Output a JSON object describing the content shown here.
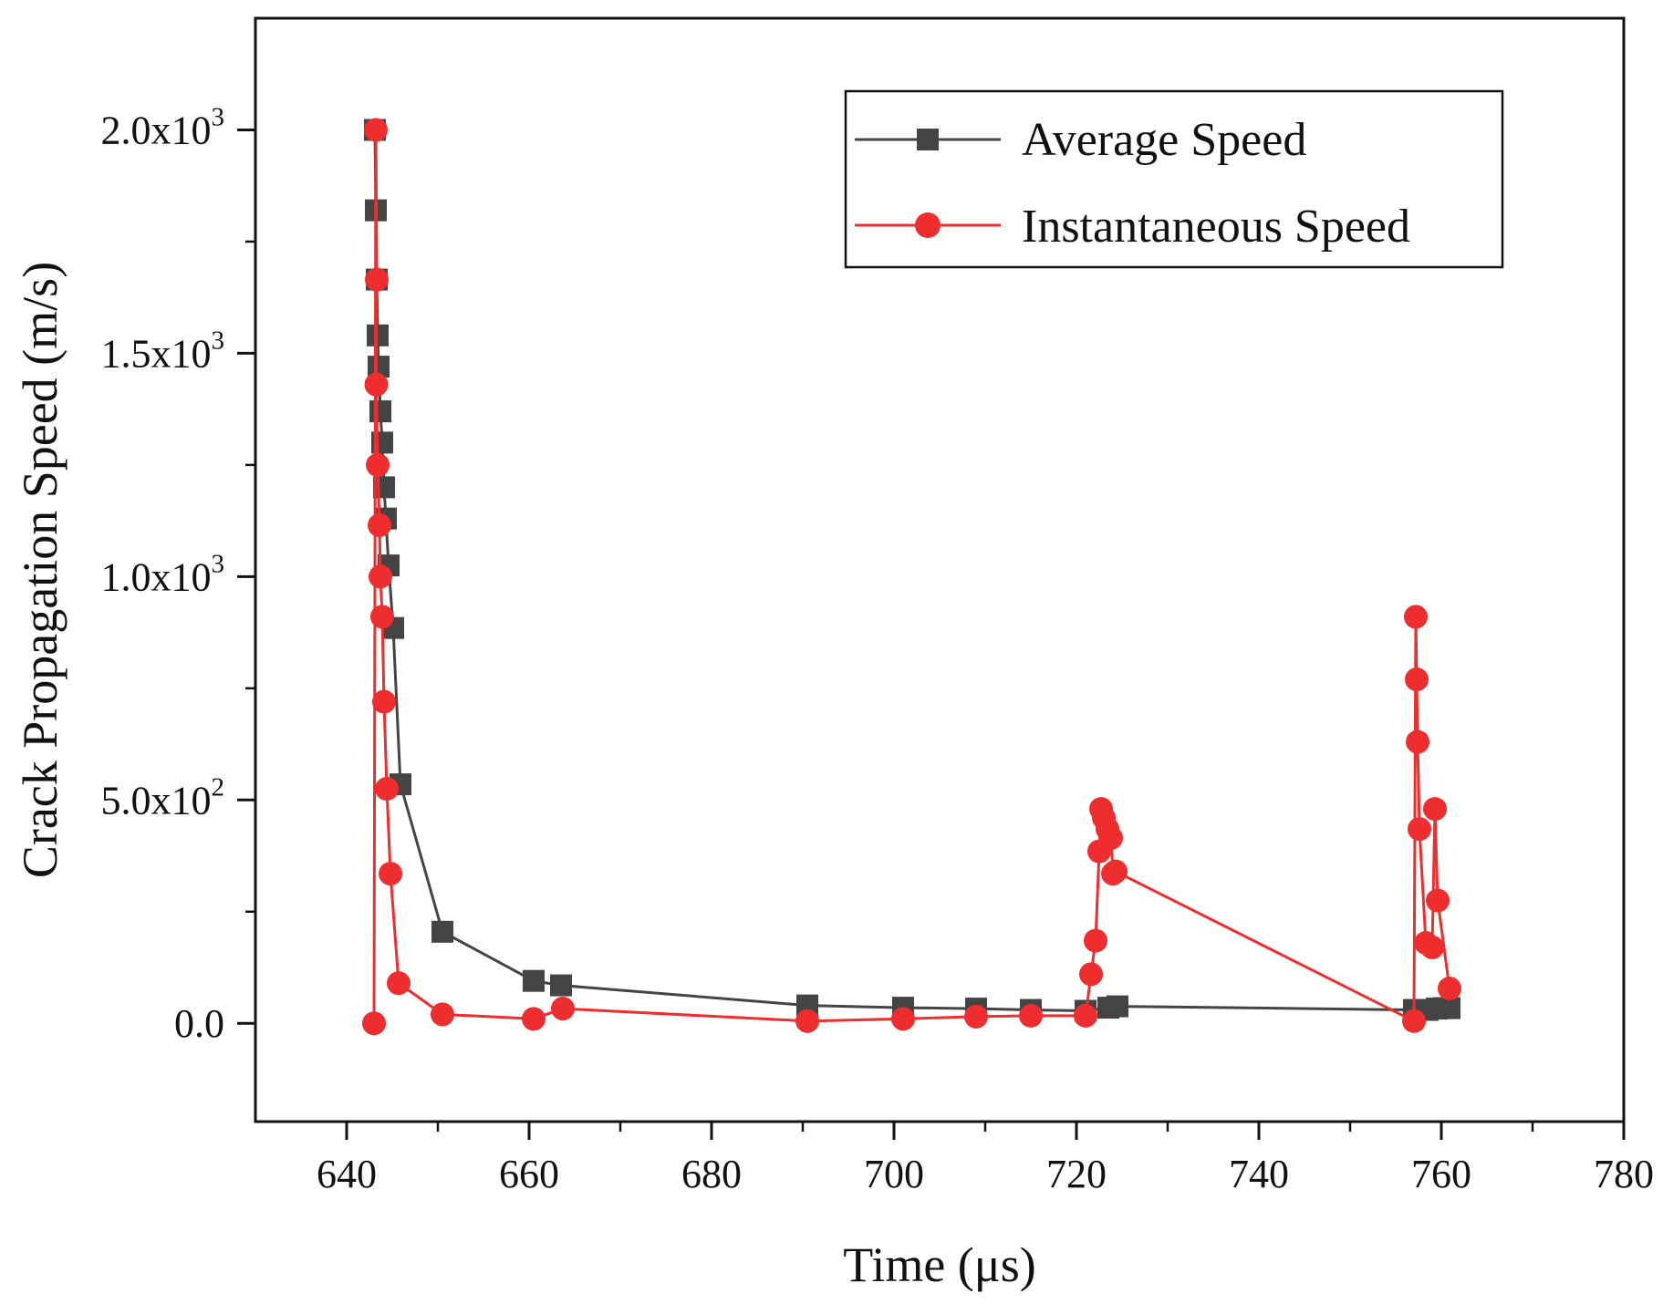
{
  "chart_data": {
    "type": "line",
    "title": "",
    "xlabel": "Time (μs)",
    "ylabel": "Crack Propagation Speed (m/s)",
    "xlim": [
      630,
      780
    ],
    "ylim": [
      -220,
      2250
    ],
    "x_ticks": [
      {
        "value": 640,
        "label": "640"
      },
      {
        "value": 660,
        "label": "660"
      },
      {
        "value": 680,
        "label": "680"
      },
      {
        "value": 700,
        "label": "700"
      },
      {
        "value": 720,
        "label": "720"
      },
      {
        "value": 740,
        "label": "740"
      },
      {
        "value": 760,
        "label": "760"
      },
      {
        "value": 780,
        "label": "780"
      }
    ],
    "x_minor_ticks": [
      650,
      670,
      690,
      710,
      730,
      750,
      770
    ],
    "y_ticks": [
      {
        "value": 0,
        "mantissa": "0.0",
        "exponent": ""
      },
      {
        "value": 500,
        "mantissa": "5.0x10",
        "exponent": "2"
      },
      {
        "value": 1000,
        "mantissa": "1.0x10",
        "exponent": "3"
      },
      {
        "value": 1500,
        "mantissa": "1.5x10",
        "exponent": "3"
      },
      {
        "value": 2000,
        "mantissa": "2.0x10",
        "exponent": "3"
      }
    ],
    "y_minor_ticks": [
      250,
      750,
      1250,
      1750
    ],
    "grid": false,
    "legend_position": "top-right",
    "series": [
      {
        "name": "Average Speed",
        "marker": "square",
        "color": "#444444",
        "points": [
          [
            643.1,
            2000
          ],
          [
            643.2,
            1820
          ],
          [
            643.3,
            1665
          ],
          [
            643.4,
            1540
          ],
          [
            643.5,
            1470
          ],
          [
            643.7,
            1370
          ],
          [
            643.9,
            1300
          ],
          [
            644.1,
            1200
          ],
          [
            644.3,
            1130
          ],
          [
            644.6,
            1025
          ],
          [
            645.1,
            885
          ],
          [
            645.9,
            535
          ],
          [
            650.5,
            205
          ],
          [
            660.5,
            95
          ],
          [
            663.5,
            85
          ],
          [
            690.5,
            40
          ],
          [
            701.0,
            35
          ],
          [
            709.0,
            33
          ],
          [
            715.0,
            30
          ],
          [
            721.0,
            28
          ],
          [
            723.5,
            35
          ],
          [
            724.5,
            38
          ],
          [
            757.0,
            30
          ],
          [
            758.5,
            30
          ],
          [
            759.5,
            33
          ],
          [
            760.3,
            34
          ],
          [
            760.9,
            34
          ]
        ]
      },
      {
        "name": "Instantaneous Speed",
        "marker": "circle",
        "color": "#ee2e2e",
        "points": [
          [
            643.0,
            0
          ],
          [
            643.2,
            2000
          ],
          [
            643.3,
            1665
          ],
          [
            643.25,
            1430
          ],
          [
            643.4,
            1250
          ],
          [
            643.6,
            1115
          ],
          [
            643.7,
            1000
          ],
          [
            643.9,
            910
          ],
          [
            644.1,
            720
          ],
          [
            644.4,
            525
          ],
          [
            644.8,
            335
          ],
          [
            645.7,
            90
          ],
          [
            650.5,
            20
          ],
          [
            660.5,
            10
          ],
          [
            663.7,
            33
          ],
          [
            690.5,
            5
          ],
          [
            701.0,
            10
          ],
          [
            709.0,
            15
          ],
          [
            715.0,
            17
          ],
          [
            721.0,
            17
          ],
          [
            721.6,
            110
          ],
          [
            722.1,
            185
          ],
          [
            722.5,
            385
          ],
          [
            722.7,
            480
          ],
          [
            723.0,
            460
          ],
          [
            723.4,
            435
          ],
          [
            723.8,
            415
          ],
          [
            724.0,
            335
          ],
          [
            724.3,
            340
          ],
          [
            757.0,
            5
          ],
          [
            757.2,
            910
          ],
          [
            757.3,
            770
          ],
          [
            757.4,
            630
          ],
          [
            757.6,
            435
          ],
          [
            758.3,
            180
          ],
          [
            759.0,
            170
          ],
          [
            759.3,
            480
          ],
          [
            759.6,
            275
          ],
          [
            760.9,
            78
          ]
        ]
      }
    ]
  }
}
